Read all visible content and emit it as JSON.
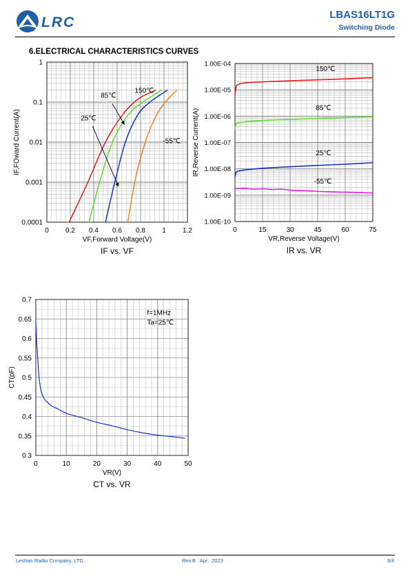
{
  "header": {
    "logo_text": "LRC",
    "part_number": "LBAS16LT1G",
    "subtitle": "Switching Diode"
  },
  "section_title": "6.ELECTRICAL CHARACTERISTICS CURVES",
  "colors": {
    "brand": "#1f5fa8",
    "red": "#e8191a",
    "green": "#5fdc2c",
    "blue": "#1a2fc8",
    "orange": "#f58220",
    "magenta": "#e020e0"
  },
  "footer": {
    "company": "Leshan Radio Company, LTD.",
    "revision": "Rev.B   Apr.  2023",
    "page": "3/4"
  },
  "chart_data": [
    {
      "type": "line",
      "title": "IF vs. VF",
      "xlabel": "VF,Forward Voltage(V)",
      "ylabel": "IF,FOward Current(A)",
      "xlim": [
        0,
        1.2
      ],
      "ylim": [
        0.0001,
        1
      ],
      "yscale": "log",
      "xticks": [
        "0",
        "0.2",
        "0.4",
        "0.6",
        "0.8",
        "1",
        "1.2"
      ],
      "yticks": [
        "1",
        "0.1",
        "0.01",
        "0.001",
        "0.0001"
      ],
      "grid": true,
      "series": [
        {
          "name": "150℃",
          "color": "#e8191a",
          "x": [
            0.19,
            0.35,
            0.5,
            0.65,
            0.78,
            0.93
          ],
          "y": [
            0.0001,
            0.001,
            0.01,
            0.05,
            0.12,
            0.2
          ]
        },
        {
          "name": "85℃",
          "color": "#5fdc2c",
          "x": [
            0.36,
            0.45,
            0.56,
            0.7,
            0.82,
            0.98
          ],
          "y": [
            0.0001,
            0.001,
            0.01,
            0.05,
            0.1,
            0.2
          ]
        },
        {
          "name": "25℃",
          "color": "#1a2fc8",
          "x": [
            0.5,
            0.58,
            0.67,
            0.78,
            0.88,
            1.03
          ],
          "y": [
            0.0001,
            0.001,
            0.01,
            0.05,
            0.1,
            0.2
          ]
        },
        {
          "name": "-55℃",
          "color": "#f58220",
          "x": [
            0.69,
            0.75,
            0.84,
            0.94,
            1.01,
            1.11
          ],
          "y": [
            0.0001,
            0.001,
            0.01,
            0.05,
            0.1,
            0.2
          ]
        }
      ],
      "annotations": [
        {
          "text": "150℃",
          "x": 0.75,
          "y": 0.17
        },
        {
          "text": "85℃",
          "x": 0.46,
          "y": 0.13
        },
        {
          "text": "25℃",
          "x": 0.29,
          "y": 0.035
        },
        {
          "text": "-55℃",
          "x": 0.99,
          "y": 0.0095
        }
      ]
    },
    {
      "type": "line",
      "title": "IR vs. VR",
      "xlabel": "VR,Reverse Voltage(V)",
      "ylabel": "IR,Reverse Current(A)",
      "xlim": [
        0,
        75
      ],
      "ylim": [
        1e-10,
        0.0001
      ],
      "yscale": "log",
      "xticks": [
        "0",
        "15",
        "30",
        "45",
        "60",
        "75"
      ],
      "yticks": [
        "1.00E-04",
        "1.00E-05",
        "1.00E-06",
        "1.00E-07",
        "1.00E-08",
        "1.00E-09",
        "1.00E-10"
      ],
      "grid": true,
      "series": [
        {
          "name": "150℃",
          "color": "#e8191a",
          "x": [
            0,
            0.5,
            2,
            5,
            15,
            30,
            45,
            60,
            75
          ],
          "y": [
            6e-06,
            1.2e-05,
            1.6e-05,
            1.8e-05,
            2e-05,
            2.2e-05,
            2.4e-05,
            2.6e-05,
            2.9e-05
          ]
        },
        {
          "name": "85℃",
          "color": "#5fdc2c",
          "x": [
            0,
            0.5,
            2,
            5,
            15,
            30,
            45,
            60,
            75
          ],
          "y": [
            3.2e-07,
            4.8e-07,
            5.5e-07,
            6e-07,
            6.8e-07,
            7.5e-07,
            8.2e-07,
            8.8e-07,
            9.5e-07
          ]
        },
        {
          "name": "25℃",
          "color": "#1a2fc8",
          "x": [
            0,
            0.5,
            2,
            5,
            15,
            30,
            45,
            60,
            75
          ],
          "y": [
            5e-09,
            7e-09,
            8.2e-09,
            9e-09,
            1.05e-08,
            1.2e-08,
            1.35e-08,
            1.5e-08,
            1.7e-08
          ]
        },
        {
          "name": "-55℃",
          "color": "#e020e0",
          "x": [
            0,
            5,
            10,
            15,
            20,
            25,
            30,
            40,
            50,
            60,
            70,
            75
          ],
          "y": [
            1.75e-09,
            1.8e-09,
            1.7e-09,
            1.75e-09,
            1.65e-09,
            1.7e-09,
            1.55e-09,
            1.45e-09,
            1.35e-09,
            1.3e-09,
            1.25e-09,
            1.2e-09
          ]
        }
      ],
      "annotations": [
        {
          "text": "150℃",
          "x": 44,
          "y": 5.2e-05
        },
        {
          "text": "85℃",
          "x": 44,
          "y": 1.7e-06
        },
        {
          "text": "25℃",
          "x": 44,
          "y": 3.3e-08
        },
        {
          "text": "-55℃",
          "x": 43,
          "y": 2.8e-09
        }
      ]
    },
    {
      "type": "line",
      "title": "CT vs. VR",
      "xlabel": "VR(V)",
      "ylabel": "CT(pF)",
      "xlim": [
        0,
        50
      ],
      "ylim": [
        0.3,
        0.7
      ],
      "xticks": [
        "0",
        "10",
        "20",
        "30",
        "40",
        "50"
      ],
      "yticks": [
        "0.7",
        "0.65",
        "0.6",
        "0.55",
        "0.5",
        "0.45",
        "0.4",
        "0.35",
        "0.3"
      ],
      "grid": true,
      "series": [
        {
          "name": "",
          "color": "#1a2fc8",
          "x": [
            0,
            0.3,
            0.7,
            1,
            1.5,
            2,
            3,
            4,
            5,
            7,
            10,
            15,
            20,
            25,
            30,
            35,
            40,
            45,
            49
          ],
          "y": [
            0.645,
            0.59,
            0.54,
            0.505,
            0.475,
            0.458,
            0.443,
            0.435,
            0.428,
            0.42,
            0.408,
            0.397,
            0.385,
            0.376,
            0.366,
            0.358,
            0.352,
            0.348,
            0.344
          ]
        }
      ],
      "annotations": [
        {
          "text": "f=1MHz",
          "x": 36.5,
          "y": 0.66
        },
        {
          "text": "Ta=25℃",
          "x": 36.5,
          "y": 0.635
        }
      ]
    }
  ]
}
